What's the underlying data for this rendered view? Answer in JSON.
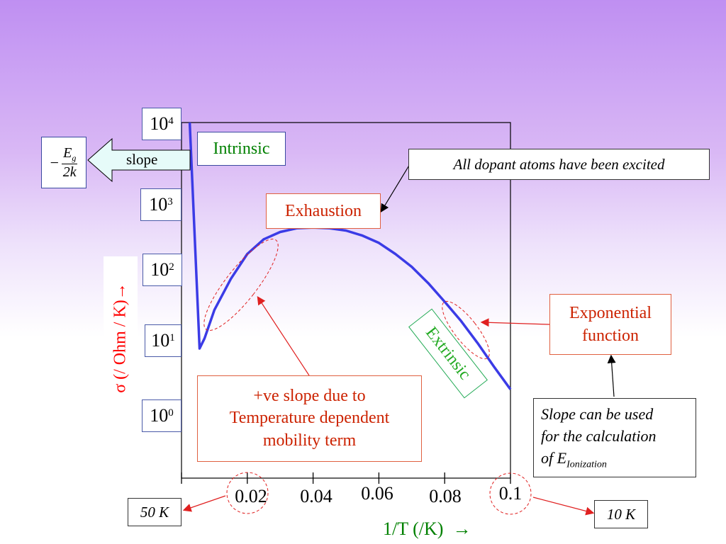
{
  "chart_data": {
    "type": "line",
    "xlabel": "1/T (/K)  →",
    "ylabel": "σ (/ Ohm / K)→",
    "xlim": [
      0.0,
      0.1
    ],
    "y_scale": "log",
    "y_ticks": [
      {
        "base": "10",
        "exp": "4"
      },
      {
        "base": "10",
        "exp": "3"
      },
      {
        "base": "10",
        "exp": "2"
      },
      {
        "base": "10",
        "exp": "1"
      },
      {
        "base": "10",
        "exp": "0"
      }
    ],
    "x_ticks": [
      "0.02",
      "0.04",
      "0.06",
      "0.08",
      "0.1"
    ],
    "series": [
      {
        "color": "#3b3be6",
        "x": [
          0.0025,
          0.0055,
          0.007,
          0.01,
          0.015,
          0.02,
          0.025,
          0.03,
          0.035,
          0.04,
          0.045,
          0.05,
          0.055,
          0.06,
          0.065,
          0.07,
          0.075,
          0.08,
          0.085,
          0.09,
          0.095,
          0.1
        ],
        "y": [
          10000,
          8,
          11,
          27,
          72,
          158,
          251,
          316,
          355,
          363,
          355,
          331,
          282,
          224,
          158,
          105,
          63,
          35,
          19,
          9.5,
          4.5,
          2.2
        ]
      }
    ],
    "grid": false
  },
  "annotations": {
    "intrinsic": "Intrinsic",
    "exhaustion": "Exhaustion",
    "extrinsic": "Extrinsic",
    "all_dopant": "All dopant atoms have been excited",
    "exponential_line1": "Exponential",
    "exponential_line2": "function",
    "ve_slope_line1": "+ve slope due to",
    "ve_slope_line2": "Temperature dependent",
    "ve_slope_line3": "mobility term",
    "slope_calc_line1": "Slope can be used",
    "slope_calc_line2": "for the calculation",
    "slope_calc_line3": "of E",
    "slope_calc_sub": "Ionization",
    "slope_word": "slope",
    "formula_minus": "−",
    "formula_num": "E",
    "formula_num_sub": "g",
    "formula_den": "2k",
    "temp_low": "50 K",
    "temp_high": "10 K"
  },
  "colors": {
    "curve": "#3b3be6",
    "intrinsic_text": "#008000",
    "extrinsic_text": "#22aa22",
    "red_text": "#cc2200",
    "axis_label": "#ff0000",
    "xlabel": "#008000"
  }
}
